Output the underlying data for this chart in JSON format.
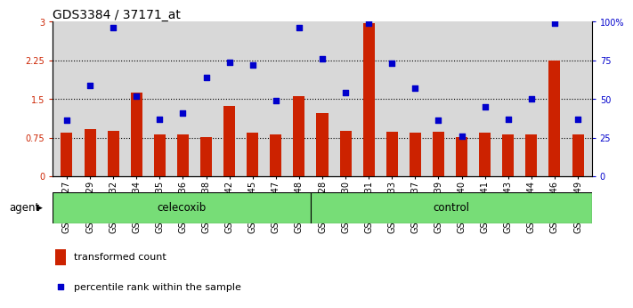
{
  "title": "GDS3384 / 37171_at",
  "samples": [
    "GSM283127",
    "GSM283129",
    "GSM283132",
    "GSM283134",
    "GSM283135",
    "GSM283136",
    "GSM283138",
    "GSM283142",
    "GSM283145",
    "GSM283147",
    "GSM283148",
    "GSM283128",
    "GSM283130",
    "GSM283131",
    "GSM283133",
    "GSM283137",
    "GSM283139",
    "GSM283140",
    "GSM283141",
    "GSM283143",
    "GSM283144",
    "GSM283146",
    "GSM283149"
  ],
  "bar_values": [
    0.85,
    0.92,
    0.88,
    1.62,
    0.82,
    0.82,
    0.76,
    1.37,
    0.85,
    0.82,
    1.56,
    1.22,
    0.88,
    2.98,
    0.87,
    0.84,
    0.87,
    0.76,
    0.85,
    0.82,
    0.82,
    2.25,
    0.82
  ],
  "scatter_values_pct": [
    36,
    59,
    96,
    52,
    37,
    41,
    64,
    74,
    72,
    49,
    96,
    76,
    54,
    99,
    73,
    57,
    36,
    26,
    45,
    37,
    50,
    99,
    37
  ],
  "celecoxib_count": 11,
  "control_count": 12,
  "bar_color": "#cc2200",
  "scatter_color": "#0000cc",
  "bar_width": 0.5,
  "ylim_left": [
    0,
    3.0
  ],
  "ylim_right": [
    0,
    100
  ],
  "yticks_left": [
    0,
    0.75,
    1.5,
    2.25,
    3.0
  ],
  "yticks_right": [
    0,
    25,
    50,
    75,
    100
  ],
  "ytick_labels_left": [
    "0",
    "0.75",
    "1.5",
    "2.25",
    "3"
  ],
  "ytick_labels_right": [
    "0",
    "25",
    "50",
    "75",
    "100%"
  ],
  "hlines": [
    0.75,
    1.5,
    2.25
  ],
  "bg_color": "#d8d8d8",
  "legend_bar_label": "transformed count",
  "legend_scatter_label": "percentile rank within the sample",
  "agent_label": "agent",
  "celecoxib_label": "celecoxib",
  "control_label": "control",
  "group_bg_color": "#77dd77",
  "title_fontsize": 10,
  "tick_fontsize": 7,
  "label_fontsize": 8.5,
  "legend_fontsize": 8
}
